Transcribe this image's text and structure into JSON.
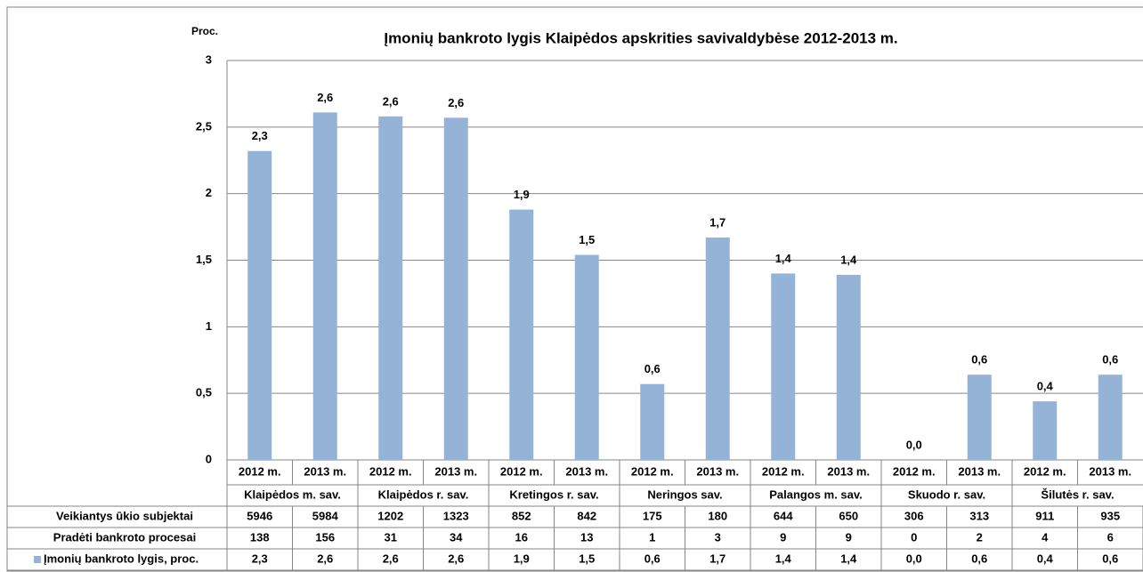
{
  "chart_data": {
    "type": "bar",
    "title": "Įmonių bankroto lygis Klaipėdos apskrities savivaldybėse 2012-2013 m.",
    "y_label": "Proc.",
    "categories": [
      "2012 m.",
      "2013 m.",
      "2012 m.",
      "2013 m.",
      "2012 m.",
      "2013 m.",
      "2012 m.",
      "2013 m.",
      "2012 m.",
      "2013 m.",
      "2012 m.",
      "2013 m.",
      "2012 m.",
      "2013 m."
    ],
    "groups": [
      "Klaipėdos m. sav.",
      "Klaipėdos r. sav.",
      "Kretingos r. sav.",
      "Neringos sav.",
      "Palangos m. sav.",
      "Skuodo r. sav.",
      "Šilutės r. sav."
    ],
    "series": [
      {
        "name": "Įmonių bankroto lygis, proc.",
        "color": "#95b3d7",
        "values": [
          2.32,
          2.61,
          2.58,
          2.57,
          1.88,
          1.54,
          0.57,
          1.67,
          1.4,
          1.39,
          0,
          0.64,
          0.44,
          0.64
        ],
        "value_labels": [
          "2,3",
          "2,6",
          "2,6",
          "2,6",
          "1,9",
          "1,5",
          "0,6",
          "1,7",
          "1,4",
          "1,4",
          "0,0",
          "0,6",
          "0,4",
          "0,6"
        ]
      }
    ],
    "ylim": [
      0,
      3
    ],
    "yticks": [
      0,
      {
        "value": 0.5,
        "label": "0,5"
      },
      1,
      {
        "value": 1.5,
        "label": "1,5"
      },
      2,
      {
        "value": 2.5,
        "label": "2,5"
      },
      3
    ],
    "grid": true,
    "data_table": {
      "rows": [
        {
          "name": "Veikiantys ūkio subjektai",
          "values": [
            5946,
            5984,
            1202,
            1323,
            852,
            842,
            175,
            180,
            644,
            650,
            306,
            313,
            911,
            935
          ]
        },
        {
          "name": "Pradėti bankroto procesai",
          "values": [
            138,
            156,
            31,
            34,
            16,
            13,
            1,
            3,
            9,
            9,
            0,
            2,
            4,
            6
          ]
        }
      ]
    }
  }
}
